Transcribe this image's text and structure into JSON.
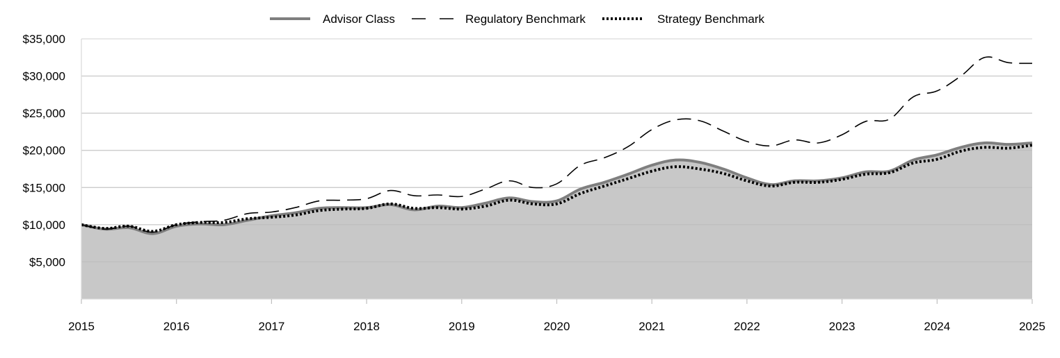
{
  "chart_data": {
    "type": "area",
    "title": "",
    "xlabel": "",
    "ylabel": "",
    "x_ticks": [
      "2015",
      "2016",
      "2017",
      "2018",
      "2019",
      "2020",
      "2021",
      "2022",
      "2023",
      "2024",
      "2025"
    ],
    "y_ticks": [
      "$5,000",
      "$10,000",
      "$15,000",
      "$20,000",
      "$25,000",
      "$30,000",
      "$35,000"
    ],
    "y_tick_values": [
      5000,
      10000,
      15000,
      20000,
      25000,
      30000,
      35000
    ],
    "xlim": [
      2015,
      2025
    ],
    "ylim": [
      0,
      35000
    ],
    "grid": true,
    "legend_position": "top-center",
    "series": [
      {
        "name": "Advisor Class",
        "style": "solid-area",
        "color": "#7f7f7f",
        "fill": "#c8c8c8",
        "x": [
          2015.0,
          2015.25,
          2015.5,
          2015.75,
          2016.0,
          2016.25,
          2016.5,
          2016.75,
          2017.0,
          2017.25,
          2017.5,
          2017.75,
          2018.0,
          2018.25,
          2018.5,
          2018.75,
          2019.0,
          2019.25,
          2019.5,
          2019.75,
          2020.0,
          2020.25,
          2020.5,
          2020.75,
          2021.0,
          2021.25,
          2021.5,
          2021.75,
          2022.0,
          2022.25,
          2022.5,
          2022.75,
          2023.0,
          2023.25,
          2023.5,
          2023.75,
          2024.0,
          2024.25,
          2024.5,
          2024.75,
          2025.0
        ],
        "values": [
          10000,
          9400,
          9600,
          8800,
          9800,
          10100,
          10000,
          10600,
          11200,
          11600,
          12200,
          12300,
          12300,
          12700,
          12000,
          12500,
          12300,
          12900,
          13600,
          13100,
          13200,
          14800,
          15700,
          16800,
          18000,
          18700,
          18400,
          17500,
          16300,
          15400,
          15900,
          15900,
          16300,
          17100,
          17200,
          18700,
          19400,
          20400,
          21000,
          20800,
          21000
        ]
      },
      {
        "name": "Regulatory Benchmark",
        "style": "dashed",
        "color": "#000000",
        "x": [
          2015.0,
          2015.25,
          2015.5,
          2015.75,
          2016.0,
          2016.25,
          2016.5,
          2016.75,
          2017.0,
          2017.25,
          2017.5,
          2017.75,
          2018.0,
          2018.25,
          2018.5,
          2018.75,
          2019.0,
          2019.25,
          2019.5,
          2019.75,
          2020.0,
          2020.25,
          2020.5,
          2020.75,
          2021.0,
          2021.25,
          2021.5,
          2021.75,
          2022.0,
          2022.25,
          2022.5,
          2022.75,
          2023.0,
          2023.25,
          2023.5,
          2023.75,
          2024.0,
          2024.25,
          2024.5,
          2024.75,
          2025.0
        ],
        "values": [
          10000,
          9400,
          9800,
          9000,
          10000,
          10400,
          10600,
          11500,
          11700,
          12300,
          13200,
          13300,
          13500,
          14600,
          13900,
          14000,
          13800,
          14800,
          15900,
          15000,
          15500,
          18000,
          19000,
          20500,
          22800,
          24100,
          24000,
          22600,
          21200,
          20600,
          21400,
          21000,
          22100,
          23900,
          24200,
          27200,
          28000,
          30000,
          32500,
          31800,
          31700
        ]
      },
      {
        "name": "Strategy Benchmark",
        "style": "dotted",
        "color": "#000000",
        "x": [
          2015.0,
          2015.25,
          2015.5,
          2015.75,
          2016.0,
          2016.25,
          2016.5,
          2016.75,
          2017.0,
          2017.25,
          2017.5,
          2017.75,
          2018.0,
          2018.25,
          2018.5,
          2018.75,
          2019.0,
          2019.25,
          2019.5,
          2019.75,
          2020.0,
          2020.25,
          2020.5,
          2020.75,
          2021.0,
          2021.25,
          2021.5,
          2021.75,
          2022.0,
          2022.25,
          2022.5,
          2022.75,
          2023.0,
          2023.25,
          2023.5,
          2023.75,
          2024.0,
          2024.25,
          2024.5,
          2024.75,
          2025.0
        ],
        "values": [
          10000,
          9500,
          9800,
          9100,
          10000,
          10300,
          10300,
          10800,
          11000,
          11300,
          11900,
          12100,
          12200,
          12800,
          12200,
          12300,
          12100,
          12500,
          13300,
          12800,
          12800,
          14200,
          15200,
          16200,
          17200,
          17800,
          17500,
          16900,
          15900,
          15200,
          15700,
          15700,
          16100,
          16800,
          17000,
          18300,
          18800,
          19900,
          20400,
          20300,
          20700
        ]
      }
    ]
  }
}
